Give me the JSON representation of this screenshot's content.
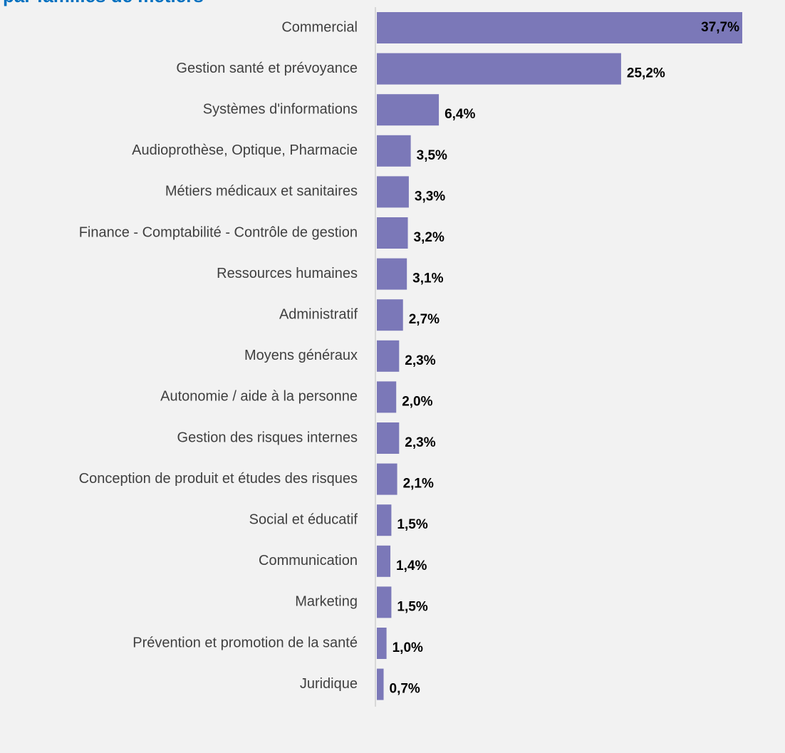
{
  "chart_data": {
    "type": "bar",
    "orientation": "horizontal",
    "title": "par familles de métiers",
    "categories": [
      "Commercial",
      "Gestion santé et prévoyance",
      "Systèmes d'informations",
      "Audioprothèse, Optique, Pharmacie ",
      "Métiers médicaux et sanitaires",
      "Finance - Comptabilité - Contrôle de gestion",
      "Ressources humaines",
      "Administratif",
      "Moyens généraux",
      "Autonomie / aide à la personne",
      "Gestion des risques internes",
      "Conception de produit et études des risques",
      "Social et éducatif",
      "Communication",
      "Marketing",
      "Prévention et promotion de la santé",
      "Juridique"
    ],
    "values": [
      37.7,
      25.2,
      6.4,
      3.5,
      3.3,
      3.2,
      3.1,
      2.7,
      2.3,
      2.0,
      2.3,
      2.1,
      1.5,
      1.4,
      1.5,
      1.0,
      0.7
    ],
    "value_labels": [
      "37,7%",
      "25,2%",
      "6,4%",
      "3,5%",
      "3,3%",
      "3,2%",
      "3,1%",
      "2,7%",
      "2,3%",
      "2,0%",
      "2,3%",
      "2,1%",
      "1,5%",
      "1,4%",
      "1,5%",
      "1,0%",
      "0,7%"
    ],
    "color": "#7b78b8",
    "title_color": "#0070c0"
  }
}
